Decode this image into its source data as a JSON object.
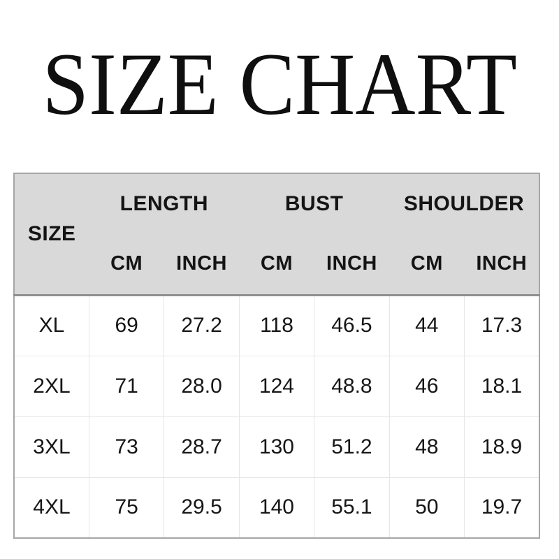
{
  "title": "SIZE CHART",
  "table": {
    "size_label": "SIZE",
    "groups": [
      {
        "label": "LENGTH"
      },
      {
        "label": "BUST"
      },
      {
        "label": "SHOULDER"
      }
    ],
    "unit_headers": [
      "CM",
      "INCH",
      "CM",
      "INCH",
      "CM",
      "INCH"
    ],
    "rows": [
      {
        "size": "XL",
        "cells": [
          "69",
          "27.2",
          "118",
          "46.5",
          "44",
          "17.3"
        ]
      },
      {
        "size": "2XL",
        "cells": [
          "71",
          "28.0",
          "124",
          "48.8",
          "46",
          "18.1"
        ]
      },
      {
        "size": "3XL",
        "cells": [
          "73",
          "28.7",
          "130",
          "51.2",
          "48",
          "18.9"
        ]
      },
      {
        "size": "4XL",
        "cells": [
          "75",
          "29.5",
          "140",
          "55.1",
          "50",
          "19.7"
        ]
      }
    ],
    "colors": {
      "header_bg": "#d9d9d9",
      "outer_border": "#a6a6a6",
      "header_divider": "#8f8f8f",
      "grid_line": "#e6e6e6",
      "text": "#141414"
    }
  },
  "chart_data": {
    "type": "table",
    "title": "SIZE CHART",
    "columns": [
      "SIZE",
      "LENGTH CM",
      "LENGTH INCH",
      "BUST CM",
      "BUST INCH",
      "SHOULDER CM",
      "SHOULDER INCH"
    ],
    "rows": [
      [
        "XL",
        69,
        27.2,
        118,
        46.5,
        44,
        17.3
      ],
      [
        "2XL",
        71,
        28.0,
        124,
        48.8,
        46,
        18.1
      ],
      [
        "3XL",
        73,
        28.7,
        130,
        51.2,
        48,
        18.9
      ],
      [
        "4XL",
        75,
        29.5,
        140,
        55.1,
        50,
        19.7
      ]
    ],
    "layout": {
      "header_rows": 2,
      "equal_column_widths": true,
      "header_background": "#d9d9d9"
    }
  }
}
